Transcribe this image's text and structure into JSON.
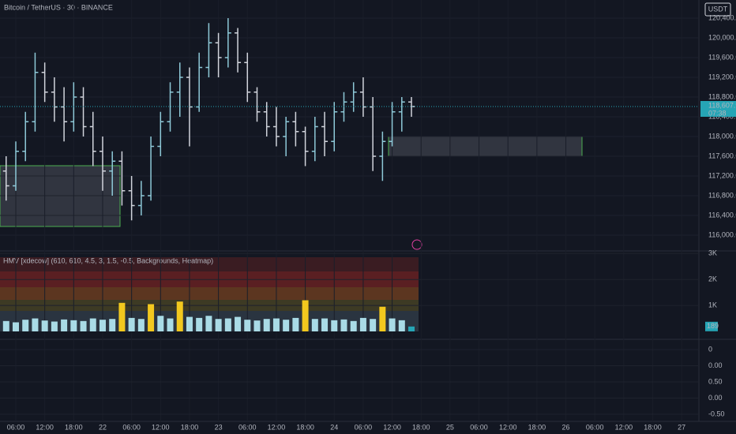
{
  "header": {
    "symbol": "Bitcoin / TetherUS · 30 · BINANCE",
    "currency": "USDT"
  },
  "chart_data": [
    {
      "type": "ohlc",
      "up_color": "#8ec9d8",
      "down_color": "#d1d4dc",
      "grid": true,
      "categories": [
        null,
        "06:00",
        null,
        null,
        "12:00",
        null,
        null,
        "18:00",
        null,
        null,
        "22",
        null,
        null,
        "06:00",
        null,
        null,
        "12:00",
        null,
        null,
        "18:00",
        null,
        null,
        "23",
        null,
        null,
        "06:00",
        null,
        null,
        "12:00",
        null,
        null,
        "18:00",
        null,
        null,
        "24",
        null,
        null,
        "06:00",
        null,
        null,
        "12:00",
        null,
        null,
        "18:00",
        null,
        null,
        "25",
        null,
        null,
        "06:00",
        null,
        null,
        "12:00",
        null,
        null,
        "18:00",
        null,
        null,
        "26",
        null,
        null,
        "06:00",
        null,
        null,
        "12:00",
        null,
        null,
        "18:00",
        null,
        null,
        "27",
        null
      ],
      "open": [
        117300,
        117000,
        117700,
        118300,
        119300,
        118900,
        118600,
        118300,
        118800,
        118200,
        117700,
        117300,
        117500,
        116900,
        116600,
        116800,
        117800,
        118300,
        118900,
        119200,
        118600,
        119400,
        119900,
        119600,
        120100,
        119500,
        118900,
        118500,
        118200,
        118000,
        118300,
        118100,
        117700,
        118200,
        117900,
        118500,
        118700,
        118900,
        118600,
        117600,
        117900,
        118500,
        118700,
        null,
        null,
        null,
        null,
        null,
        null,
        null,
        null,
        null,
        null,
        null,
        null,
        null,
        null,
        null,
        null,
        null,
        null,
        null,
        null,
        null,
        null,
        null,
        null,
        null,
        null,
        null,
        null,
        null
      ],
      "high": [
        117600,
        117900,
        118500,
        119700,
        119500,
        119200,
        119000,
        119100,
        119000,
        118500,
        118000,
        117700,
        117700,
        117200,
        117100,
        118000,
        118500,
        119100,
        119500,
        119400,
        119700,
        120300,
        120100,
        120400,
        120200,
        119700,
        119000,
        118700,
        118600,
        118400,
        118500,
        118200,
        118400,
        118500,
        118700,
        118900,
        119100,
        119200,
        118800,
        118100,
        118700,
        118800,
        118800,
        null,
        null,
        null,
        null,
        null,
        null,
        null,
        null,
        null,
        null,
        null,
        null,
        null,
        null,
        null,
        null,
        null,
        null,
        null,
        null,
        null,
        null,
        null,
        null,
        null,
        null,
        null,
        null,
        null
      ],
      "low": [
        116700,
        116900,
        117500,
        118100,
        118700,
        118300,
        117900,
        118100,
        118000,
        117400,
        116900,
        116800,
        116600,
        116300,
        116400,
        116700,
        117600,
        118100,
        118400,
        117800,
        118500,
        119200,
        119200,
        119400,
        119300,
        118700,
        118300,
        118000,
        117800,
        117600,
        117800,
        117400,
        117500,
        117600,
        117700,
        118300,
        118500,
        118400,
        117300,
        117100,
        117800,
        118100,
        118400,
        null,
        null,
        null,
        null,
        null,
        null,
        null,
        null,
        null,
        null,
        null,
        null,
        null,
        null,
        null,
        null,
        null,
        null,
        null,
        null,
        null,
        null,
        null,
        null,
        null,
        null,
        null,
        null,
        null
      ],
      "close": [
        117000,
        117700,
        118300,
        119300,
        118900,
        118600,
        118300,
        118800,
        118200,
        117700,
        117300,
        117500,
        116900,
        116600,
        116800,
        117800,
        118300,
        118900,
        119200,
        118600,
        119400,
        119900,
        119600,
        120100,
        119500,
        118900,
        118500,
        118200,
        118000,
        118300,
        118100,
        117700,
        118200,
        117900,
        118500,
        118700,
        118900,
        118600,
        117600,
        117900,
        118500,
        118700,
        118607.99,
        null,
        null,
        null,
        null,
        null,
        null,
        null,
        null,
        null,
        null,
        null,
        null,
        null,
        null,
        null,
        null,
        null,
        null,
        null,
        null,
        null,
        null,
        null,
        null,
        null,
        null,
        null,
        null,
        null
      ],
      "last_label": "118,607.99",
      "countdown": "07:38",
      "ylim": [
        115712,
        120768
      ],
      "yticks": [
        {
          "value": 116000,
          "label": "116,000.00"
        },
        {
          "value": 116400,
          "label": "116,400.00"
        },
        {
          "value": 116800,
          "label": "116,800.00"
        },
        {
          "value": 117200,
          "label": "117,200.00"
        },
        {
          "value": 117600,
          "label": "117,600.00"
        },
        {
          "value": 118000,
          "label": "118,000.00"
        },
        {
          "value": 118400,
          "label": "118,400.00"
        },
        {
          "value": 118800,
          "label": "118,800.00"
        },
        {
          "value": 119200,
          "label": "119,200.00"
        },
        {
          "value": 119600,
          "label": "119,600.00"
        },
        {
          "value": 120000,
          "label": "120,000.00"
        },
        {
          "value": 120400,
          "label": "120,400.00"
        }
      ]
    },
    {
      "type": "bar",
      "title": "HMV [xdecow] (610, 610, 4.5, 3, 1.5, -0.5, Backgrounds, Heatmap)",
      "values": [
        400,
        350,
        450,
        500,
        420,
        380,
        460,
        430,
        400,
        500,
        450,
        480,
        1100,
        520,
        480,
        1050,
        600,
        500,
        1150,
        560,
        520,
        600,
        480,
        500,
        560,
        450,
        420,
        480,
        500,
        450,
        520,
        1200,
        480,
        500,
        430,
        460,
        400,
        520,
        480,
        950,
        500,
        430,
        189,
        null,
        null,
        null,
        null,
        null,
        null,
        null,
        null,
        null,
        null,
        null,
        null,
        null,
        null,
        null,
        null,
        null,
        null,
        null,
        null,
        null,
        null,
        null,
        null,
        null,
        null,
        null,
        null,
        null
      ],
      "colors": [
        "#a9dbe6",
        "#a9dbe6",
        "#a9dbe6",
        "#a9dbe6",
        "#a9dbe6",
        "#a9dbe6",
        "#a9dbe6",
        "#a9dbe6",
        "#a9dbe6",
        "#a9dbe6",
        "#a9dbe6",
        "#a9dbe6",
        "#f2c81e",
        "#a9dbe6",
        "#a9dbe6",
        "#f2c81e",
        "#a9dbe6",
        "#a9dbe6",
        "#f2c81e",
        "#a9dbe6",
        "#a9dbe6",
        "#a9dbe6",
        "#a9dbe6",
        "#a9dbe6",
        "#a9dbe6",
        "#a9dbe6",
        "#a9dbe6",
        "#a9dbe6",
        "#a9dbe6",
        "#a9dbe6",
        "#a9dbe6",
        "#f2c81e",
        "#a9dbe6",
        "#a9dbe6",
        "#a9dbe6",
        "#a9dbe6",
        "#a9dbe6",
        "#a9dbe6",
        "#a9dbe6",
        "#f2c81e",
        "#a9dbe6",
        "#a9dbe6",
        "#26a5b5",
        null,
        null,
        null,
        null,
        null,
        null,
        null,
        null,
        null,
        null,
        null,
        null,
        null,
        null,
        null,
        null,
        null,
        null,
        null,
        null,
        null,
        null,
        null,
        null,
        null,
        null,
        null,
        null,
        null
      ],
      "last_label": "189",
      "ylim": [
        0,
        3100
      ],
      "yticks": [
        {
          "value": 1000,
          "label": "1K"
        },
        {
          "value": 2000,
          "label": "2K"
        },
        {
          "value": 3000,
          "label": "3K"
        }
      ]
    }
  ],
  "lower_pane": {
    "labels": [
      "0",
      "0.00",
      "0.50",
      "0.00",
      "-0.50"
    ]
  }
}
